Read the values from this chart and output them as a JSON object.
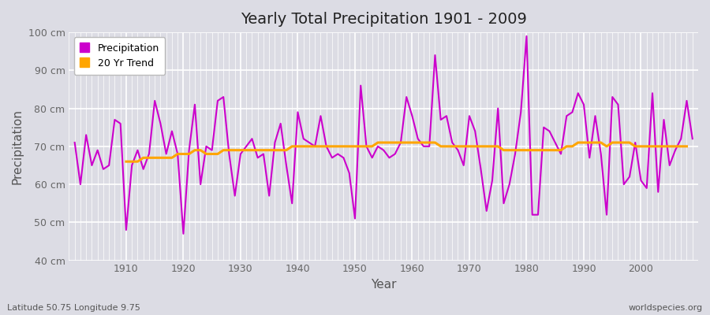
{
  "title": "Yearly Total Precipitation 1901 - 2009",
  "xlabel": "Year",
  "ylabel": "Precipitation",
  "subtitle_left": "Latitude 50.75 Longitude 9.75",
  "subtitle_right": "worldspecies.org",
  "ylim": [
    40,
    100
  ],
  "ytick_labels": [
    "40 cm",
    "50 cm",
    "60 cm",
    "70 cm",
    "80 cm",
    "90 cm",
    "100 cm"
  ],
  "ytick_values": [
    40,
    50,
    60,
    70,
    80,
    90,
    100
  ],
  "precip_color": "#CC00CC",
  "trend_color": "#FFA500",
  "bg_color": "#E8E8EC",
  "plot_bg_color": "#E0E0E8",
  "legend_bg": "#FFFFFF",
  "years": [
    1901,
    1902,
    1903,
    1904,
    1905,
    1906,
    1907,
    1908,
    1909,
    1910,
    1911,
    1912,
    1913,
    1914,
    1915,
    1916,
    1917,
    1918,
    1919,
    1920,
    1921,
    1922,
    1923,
    1924,
    1925,
    1926,
    1927,
    1928,
    1929,
    1930,
    1931,
    1932,
    1933,
    1934,
    1935,
    1936,
    1937,
    1938,
    1939,
    1940,
    1941,
    1942,
    1943,
    1944,
    1945,
    1946,
    1947,
    1948,
    1949,
    1950,
    1951,
    1952,
    1953,
    1954,
    1955,
    1956,
    1957,
    1958,
    1959,
    1960,
    1961,
    1962,
    1963,
    1964,
    1965,
    1966,
    1967,
    1968,
    1969,
    1970,
    1971,
    1972,
    1973,
    1974,
    1975,
    1976,
    1977,
    1978,
    1979,
    1980,
    1981,
    1982,
    1983,
    1984,
    1985,
    1986,
    1987,
    1988,
    1989,
    1990,
    1991,
    1992,
    1993,
    1994,
    1995,
    1996,
    1997,
    1998,
    1999,
    2000,
    2001,
    2002,
    2003,
    2004,
    2005,
    2006,
    2007,
    2008,
    2009
  ],
  "precipitation": [
    71,
    60,
    73,
    65,
    69,
    64,
    65,
    77,
    76,
    48,
    65,
    69,
    64,
    68,
    82,
    76,
    68,
    74,
    68,
    47,
    69,
    81,
    60,
    70,
    69,
    82,
    83,
    68,
    57,
    68,
    70,
    72,
    67,
    68,
    57,
    71,
    76,
    65,
    55,
    79,
    72,
    71,
    70,
    78,
    70,
    67,
    68,
    67,
    63,
    51,
    86,
    70,
    67,
    70,
    69,
    67,
    68,
    71,
    83,
    78,
    72,
    70,
    70,
    94,
    77,
    78,
    71,
    69,
    65,
    78,
    74,
    64,
    53,
    61,
    80,
    55,
    60,
    68,
    79,
    99,
    52,
    52,
    75,
    74,
    71,
    68,
    78,
    79,
    84,
    81,
    67,
    78,
    68,
    52,
    83,
    81,
    60,
    62,
    71,
    61,
    59,
    84,
    58,
    77,
    65,
    69,
    72,
    82,
    72
  ],
  "trend": [
    null,
    null,
    null,
    null,
    null,
    null,
    null,
    null,
    null,
    66,
    66,
    66,
    67,
    67,
    67,
    67,
    67,
    67,
    68,
    68,
    68,
    69,
    69,
    68,
    68,
    68,
    69,
    69,
    69,
    69,
    69,
    69,
    69,
    69,
    69,
    69,
    69,
    69,
    70,
    70,
    70,
    70,
    70,
    70,
    70,
    70,
    70,
    70,
    70,
    70,
    70,
    70,
    70,
    71,
    71,
    71,
    71,
    71,
    71,
    71,
    71,
    71,
    71,
    71,
    70,
    70,
    70,
    70,
    70,
    70,
    70,
    70,
    70,
    70,
    70,
    69,
    69,
    69,
    69,
    69,
    69,
    69,
    69,
    69,
    69,
    69,
    70,
    70,
    71,
    71,
    71,
    71,
    71,
    70,
    71,
    71,
    71,
    71,
    70,
    70,
    70,
    70,
    70,
    70,
    70,
    70,
    70,
    70,
    null
  ]
}
